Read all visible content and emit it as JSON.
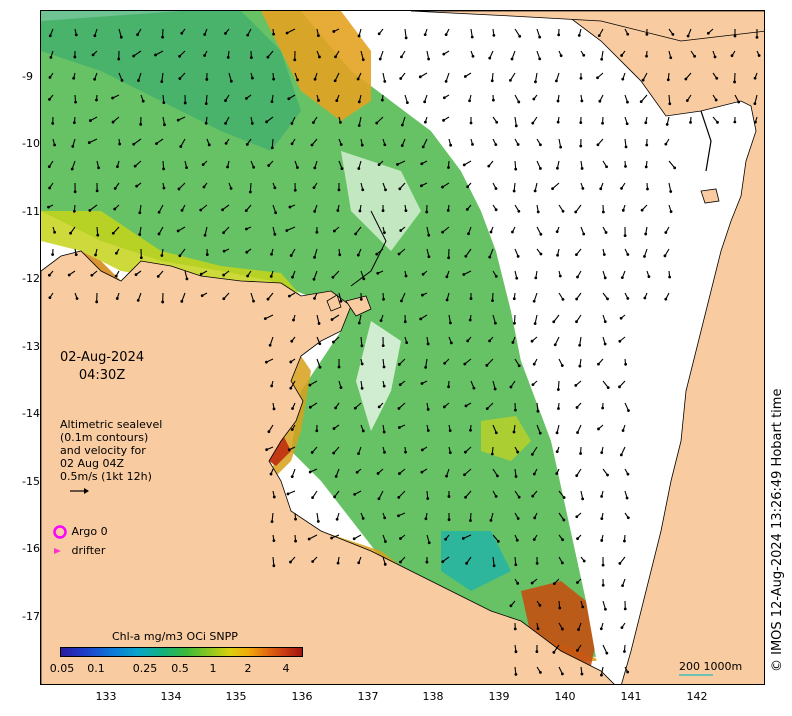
{
  "map": {
    "lon_ticks": [
      "133",
      "134",
      "135",
      "136",
      "137",
      "138",
      "139",
      "140",
      "141",
      "142"
    ],
    "lat_ticks": [
      "9",
      "10",
      "11",
      "12",
      "13",
      "14",
      "15",
      "16",
      "17"
    ],
    "lat_tick_prefix": "-"
  },
  "overlay": {
    "date": "02-Aug-2024",
    "time": "04:30Z",
    "legend_lines": [
      "Altimetric sealevel",
      "(0.1m contours)",
      "and velocity for",
      "02 Aug 04Z",
      "0.5m/s (1kt 12h)"
    ],
    "argo_label": "Argo 0",
    "drifter_label": "drifter"
  },
  "colorbar": {
    "title": "Chl-a mg/m3 OCi SNPP",
    "ticks": [
      "0.05",
      "0.1",
      "0.25",
      "0.5",
      "1",
      "2",
      "4"
    ]
  },
  "scale": {
    "label": "200  1000m"
  },
  "credit": "© IMOS 12-Aug-2024 13:26:49 Hobart time",
  "colors": {
    "land": "#f9cba0",
    "ocean": "#ffffff",
    "argo": "#ff00ff",
    "drifter": "#ff33cc",
    "scale_bar": "#6ec2b4"
  }
}
